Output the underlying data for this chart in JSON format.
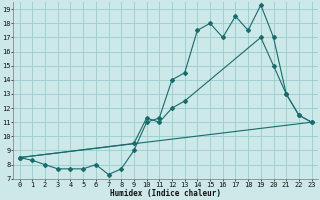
{
  "xlabel": "Humidex (Indice chaleur)",
  "background_color": "#cce8e8",
  "grid_color": "#99cccc",
  "line_color": "#1a6b6b",
  "xlim": [
    -0.5,
    23.5
  ],
  "ylim": [
    7,
    19.5
  ],
  "xticks": [
    0,
    1,
    2,
    3,
    4,
    5,
    6,
    7,
    8,
    9,
    10,
    11,
    12,
    13,
    14,
    15,
    16,
    17,
    18,
    19,
    20,
    21,
    22,
    23
  ],
  "yticks": [
    7,
    8,
    9,
    10,
    11,
    12,
    13,
    14,
    15,
    16,
    17,
    18,
    19
  ],
  "line1_x": [
    0,
    1,
    2,
    3,
    4,
    5,
    6,
    7,
    8,
    9,
    10,
    11,
    12,
    13,
    14,
    15,
    16,
    17,
    18,
    19,
    20,
    21,
    22,
    23
  ],
  "line1_y": [
    8.5,
    8.3,
    8.0,
    7.7,
    7.7,
    7.7,
    8.0,
    7.3,
    7.7,
    9.0,
    11.0,
    11.3,
    14.0,
    14.5,
    17.5,
    18.0,
    17.0,
    18.5,
    17.5,
    19.3,
    17.0,
    13.0,
    11.5,
    11.0
  ],
  "line2_x": [
    0,
    9,
    10,
    11,
    12,
    13,
    19,
    20,
    21,
    22,
    23
  ],
  "line2_y": [
    8.5,
    9.5,
    11.3,
    11.0,
    12.0,
    12.5,
    17.0,
    15.0,
    13.0,
    11.5,
    11.0
  ],
  "line3_x": [
    0,
    23
  ],
  "line3_y": [
    8.5,
    11.0
  ],
  "xlabel_fontsize": 5.5,
  "tick_fontsize": 5.0
}
